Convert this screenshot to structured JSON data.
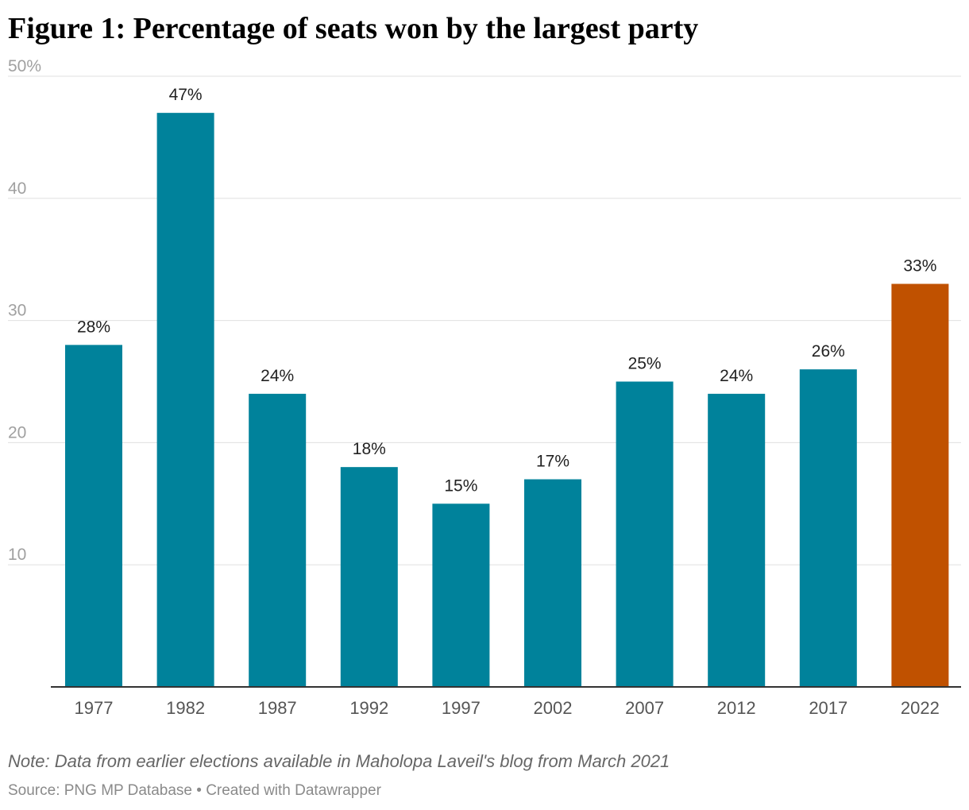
{
  "title": "Figure 1: Percentage of seats won by the largest party",
  "note": "Note: Data from earlier elections available in Maholopa Laveil's blog from March 2021",
  "source": "Source: PNG MP Database • Created with Datawrapper",
  "chart_data": {
    "type": "bar",
    "title": "Figure 1: Percentage of seats won by the largest party",
    "categories": [
      "1977",
      "1982",
      "1987",
      "1992",
      "1997",
      "2002",
      "2007",
      "2012",
      "2017",
      "2022"
    ],
    "values": [
      28,
      47,
      24,
      18,
      15,
      17,
      25,
      24,
      26,
      33
    ],
    "data_labels": [
      "28%",
      "47%",
      "24%",
      "18%",
      "15%",
      "17%",
      "25%",
      "24%",
      "26%",
      "33%"
    ],
    "ylim": [
      0,
      50
    ],
    "yticks": [
      10,
      20,
      30,
      40,
      50
    ],
    "ytick_labels": [
      "10",
      "20",
      "30",
      "40",
      "50%"
    ],
    "xlabel": "",
    "ylabel": "",
    "grid": true,
    "colors": {
      "default": "#00829b",
      "highlight": "#c05100",
      "highlight_category": "2022",
      "grid": "#e0e0e0",
      "baseline": "#333333"
    }
  }
}
